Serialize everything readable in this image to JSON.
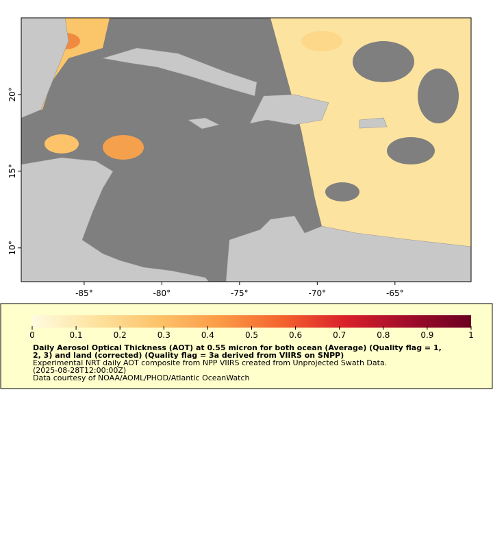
{
  "map": {
    "xlim": [
      -89.05,
      -60.1
    ],
    "ylim": [
      7.8,
      25
    ],
    "lon_ticks": [
      {
        "value": -85,
        "label": "-85°"
      },
      {
        "value": -80,
        "label": "-80°"
      },
      {
        "value": -75,
        "label": "-75°"
      },
      {
        "value": -70,
        "label": "-70°"
      },
      {
        "value": -65,
        "label": "-65°"
      }
    ],
    "lat_ticks": [
      {
        "value": 10,
        "label": "10°"
      },
      {
        "value": 15,
        "label": "15°"
      },
      {
        "value": 20,
        "label": "20°"
      }
    ]
  },
  "colorbar": {
    "lim": [
      0,
      1
    ],
    "ticks": [
      0,
      0.1,
      0.2,
      0.3,
      0.4,
      0.5,
      0.6,
      0.7,
      0.8,
      0.9,
      1
    ],
    "colormap": [
      "#fffbe0",
      "#fde3a0",
      "#fdc36a",
      "#fb9a46",
      "#f4622e",
      "#d9202a",
      "#a00c2a",
      "#6b0022"
    ]
  },
  "legend": {
    "title_lines": [
      "Daily Aerosol Optical Thickness (AOT) at 0.55 micron for both ocean (Average) (Quality flag = 1,",
      "2, 3) and land (corrected) (Quality flag = 3a derived from VIIRS on SNPP)"
    ],
    "lines": [
      "Experimental NRT daily AOT composite from NPP VIIRS created from Unprojected Swath Data.",
      "(2025-08-28T12:00:00Z)",
      "Data courtesy of NOAA/AOML/PHOD/Atlantic OceanWatch"
    ]
  }
}
